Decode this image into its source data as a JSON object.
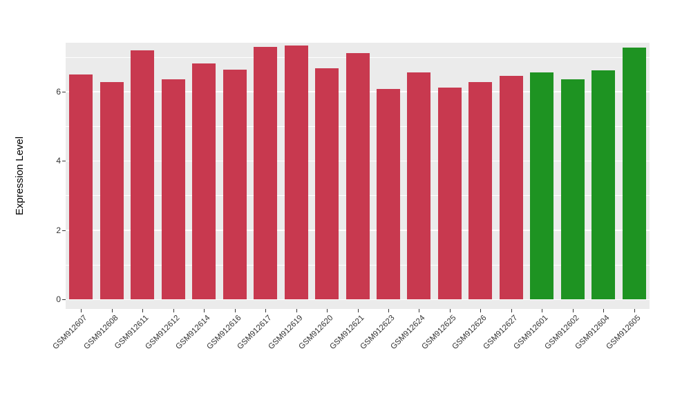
{
  "chart_data": {
    "type": "bar",
    "title": "",
    "xlabel": "",
    "ylabel": "Expression Level",
    "categories": [
      "GSM912607",
      "GSM912608",
      "GSM912611",
      "GSM912612",
      "GSM912614",
      "GSM912616",
      "GSM912617",
      "GSM912619",
      "GSM912620",
      "GSM912621",
      "GSM912623",
      "GSM912624",
      "GSM912625",
      "GSM912626",
      "GSM912627",
      "GSM912601",
      "GSM912602",
      "GSM912604",
      "GSM912605"
    ],
    "values": [
      6.5,
      6.27,
      7.2,
      6.35,
      6.82,
      6.63,
      7.3,
      7.33,
      6.67,
      7.12,
      6.07,
      6.55,
      6.12,
      6.27,
      6.45,
      6.55,
      6.35,
      6.62,
      7.27
    ],
    "groups": [
      "red",
      "red",
      "red",
      "red",
      "red",
      "red",
      "red",
      "red",
      "red",
      "red",
      "red",
      "red",
      "red",
      "red",
      "red",
      "green",
      "green",
      "green",
      "green"
    ],
    "group_colors": {
      "red": "#C8394F",
      "green": "#1E9322"
    },
    "yticks": [
      0,
      2,
      4,
      6
    ],
    "minor_gridlines": [
      1,
      3,
      5,
      7
    ],
    "ylim": [
      0,
      7.4
    ],
    "panel_background": "#EBEBEB",
    "gridline_color": "#FFFFFF",
    "axis_text_color": "#333333",
    "legend": "none",
    "grid": true
  }
}
